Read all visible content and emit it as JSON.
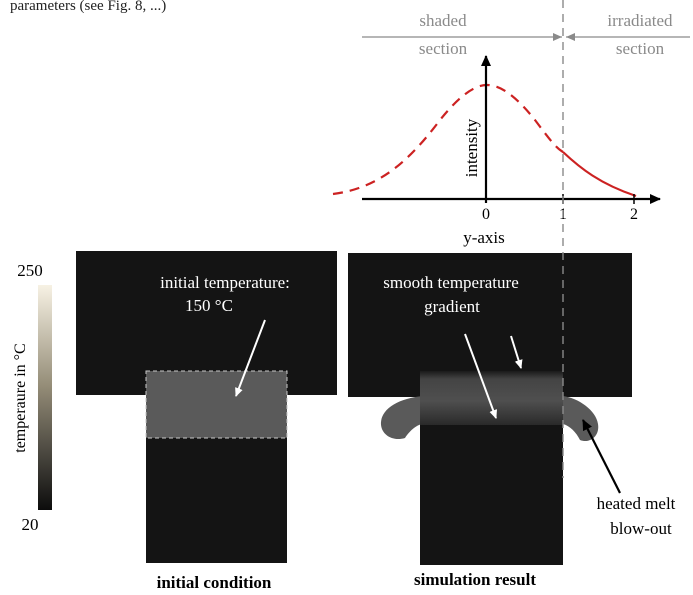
{
  "header_fragment": "parameters (see Fig. 8, ...)",
  "sections": {
    "shaded": [
      "shaded",
      "section"
    ],
    "irradiated": [
      "irradiated",
      "section"
    ]
  },
  "intensity_plot": {
    "ylabel": "intensity",
    "xlabel": "y-axis",
    "ticks": [
      "0",
      "1",
      "2"
    ],
    "curve_color": "#cc2222"
  },
  "colorbar": {
    "label": "temperaure in °C",
    "max_label": "250",
    "min_label": "20"
  },
  "left_panel": {
    "annotation": [
      "initial temperature:",
      "150 °C"
    ],
    "caption": "initial condition"
  },
  "right_panel": {
    "annotation": [
      "smooth temperature",
      "gradient"
    ],
    "melt_annotation": [
      "heated melt",
      "blow-out"
    ],
    "caption": "simulation result"
  },
  "colors": {
    "part_dark": "#141414",
    "heated_zone": "#5a5a5a",
    "divider_grey": "#8a8a8a"
  }
}
